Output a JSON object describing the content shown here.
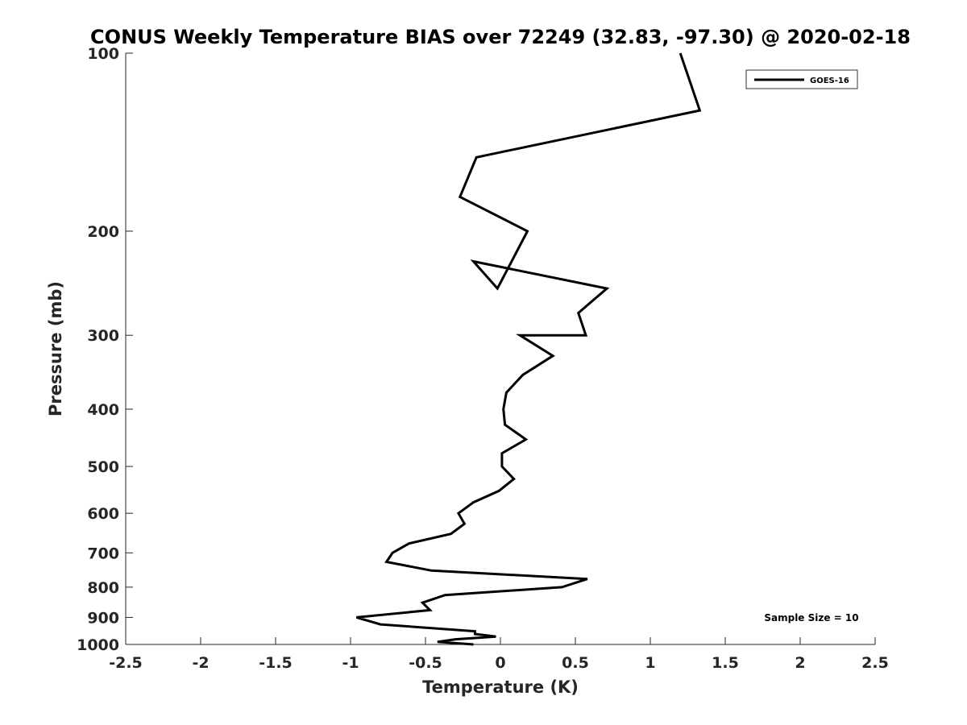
{
  "chart_data": {
    "type": "line",
    "title": "CONUS Weekly Temperature BIAS over 72249 (32.83, -97.30) @ 2020-02-18",
    "xlabel": "Temperature (K)",
    "ylabel": "Pressure (mb)",
    "xlim": [
      -2.5,
      2.5
    ],
    "ylim": [
      100,
      1000
    ],
    "y_scale": "log",
    "y_reversed": true,
    "x_ticks": [
      "-2.5",
      "-2",
      "-1.5",
      "-1",
      "-0.5",
      "0",
      "0.5",
      "1",
      "1.5",
      "2",
      "2.5"
    ],
    "x_tick_values": [
      -2.5,
      -2,
      -1.5,
      -1,
      -0.5,
      0,
      0.5,
      1,
      1.5,
      2,
      2.5
    ],
    "y_ticks": [
      "100",
      "200",
      "300",
      "400",
      "500",
      "600",
      "700",
      "800",
      "900",
      "1000"
    ],
    "y_tick_values": [
      100,
      200,
      300,
      400,
      500,
      600,
      700,
      800,
      900,
      1000
    ],
    "grid": false,
    "legend_position": "top-right",
    "annotation": "Sample Size = 10",
    "series": [
      {
        "name": "GOES-16",
        "color": "#000000",
        "points": [
          {
            "x": 1.2,
            "y": 100
          },
          {
            "x": 1.33,
            "y": 125
          },
          {
            "x": -0.16,
            "y": 150
          },
          {
            "x": -0.27,
            "y": 175
          },
          {
            "x": 0.18,
            "y": 200
          },
          {
            "x": -0.02,
            "y": 250
          },
          {
            "x": -0.18,
            "y": 225
          },
          {
            "x": 0.71,
            "y": 250
          },
          {
            "x": 0.52,
            "y": 275
          },
          {
            "x": 0.57,
            "y": 300
          },
          {
            "x": 0.13,
            "y": 300
          },
          {
            "x": 0.35,
            "y": 325
          },
          {
            "x": 0.15,
            "y": 350
          },
          {
            "x": 0.04,
            "y": 375
          },
          {
            "x": 0.02,
            "y": 400
          },
          {
            "x": 0.03,
            "y": 425
          },
          {
            "x": 0.17,
            "y": 450
          },
          {
            "x": 0.01,
            "y": 475
          },
          {
            "x": 0.01,
            "y": 500
          },
          {
            "x": 0.09,
            "y": 525
          },
          {
            "x": -0.01,
            "y": 550
          },
          {
            "x": -0.18,
            "y": 575
          },
          {
            "x": -0.28,
            "y": 600
          },
          {
            "x": -0.24,
            "y": 625
          },
          {
            "x": -0.33,
            "y": 650
          },
          {
            "x": -0.61,
            "y": 675
          },
          {
            "x": -0.72,
            "y": 700
          },
          {
            "x": -0.76,
            "y": 725
          },
          {
            "x": -0.46,
            "y": 750
          },
          {
            "x": 0.58,
            "y": 775
          },
          {
            "x": 0.41,
            "y": 800
          },
          {
            "x": -0.37,
            "y": 825
          },
          {
            "x": -0.52,
            "y": 850
          },
          {
            "x": -0.47,
            "y": 875
          },
          {
            "x": -0.96,
            "y": 900
          },
          {
            "x": -0.8,
            "y": 925
          },
          {
            "x": -0.17,
            "y": 950
          },
          {
            "x": -0.17,
            "y": 960
          },
          {
            "x": -0.03,
            "y": 970
          },
          {
            "x": -0.3,
            "y": 980
          },
          {
            "x": -0.42,
            "y": 990
          },
          {
            "x": -0.18,
            "y": 1000
          }
        ]
      }
    ]
  }
}
